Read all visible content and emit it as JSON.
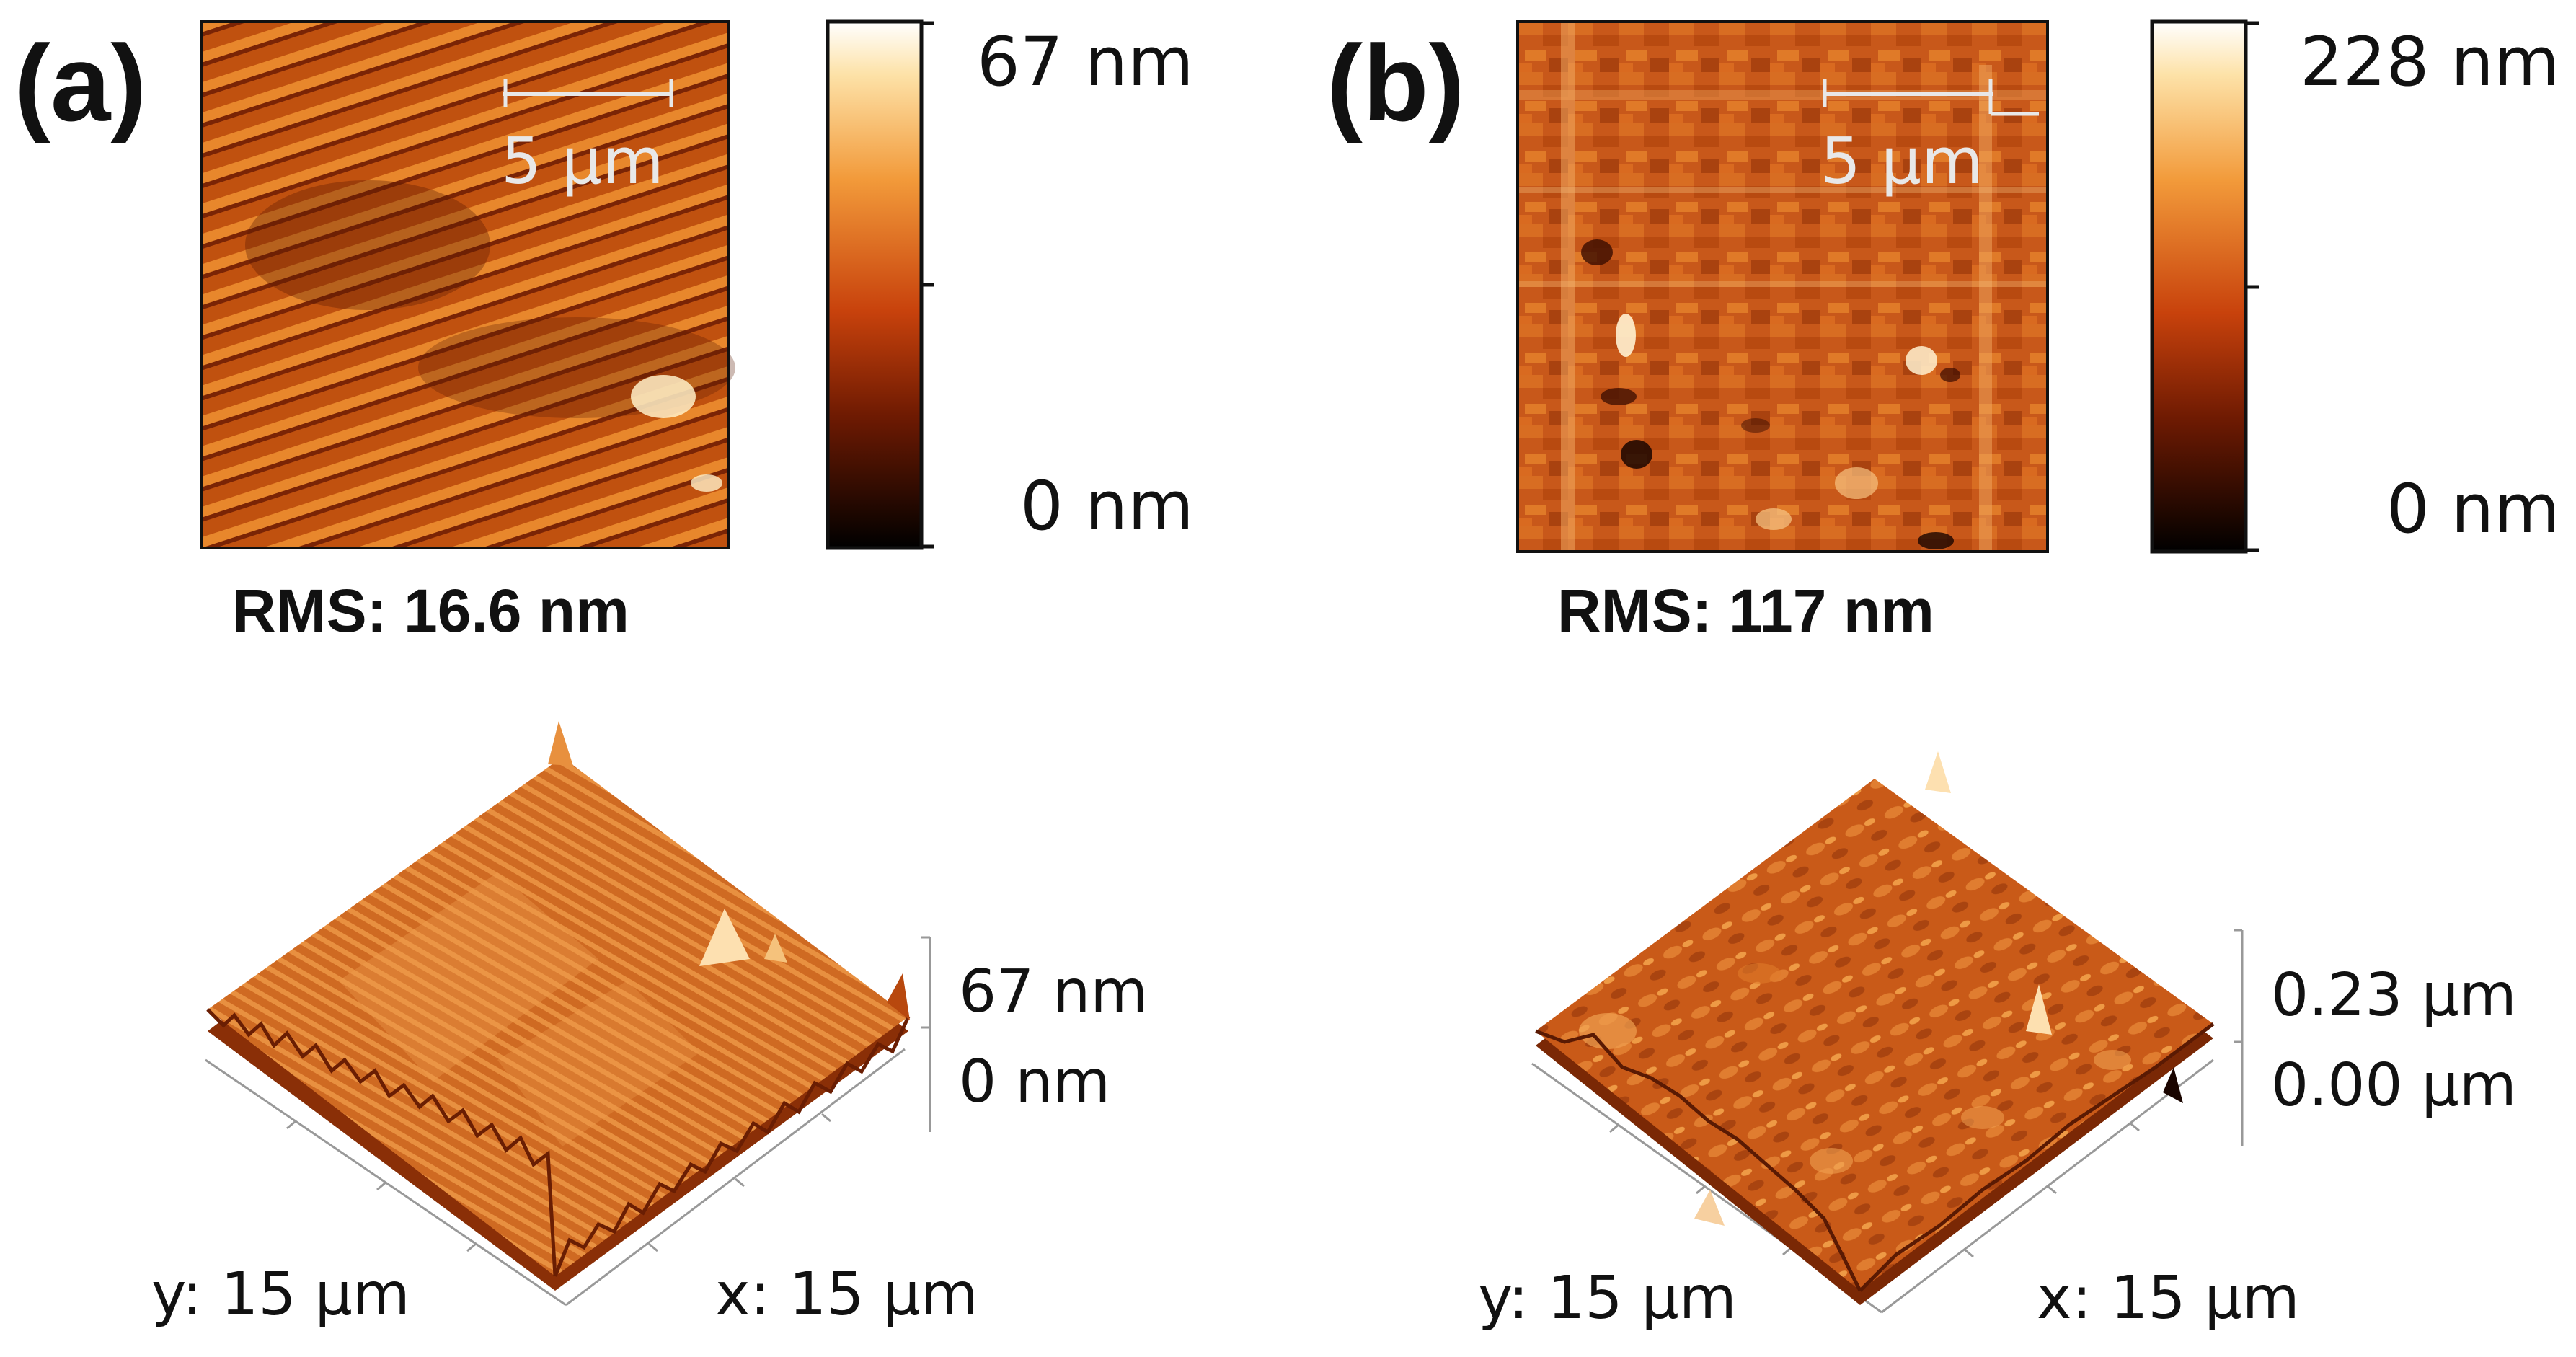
{
  "panels": [
    {
      "label": "(a)",
      "colorbar": {
        "max_label": "67 nm",
        "min_label": "0 nm"
      },
      "scale_bar": "5 µm",
      "rms": "RMS: 16.6 nm",
      "surface3d": {
        "z_top": "67 nm",
        "z_bottom": "0 nm",
        "y_axis": "y: 15 µm",
        "x_axis": "x: 15 µm"
      }
    },
    {
      "label": "(b)",
      "colorbar": {
        "max_label": "228 nm",
        "min_label": "0 nm"
      },
      "scale_bar": "5 µm",
      "rms": "RMS: 117 nm",
      "surface3d": {
        "z_top": "0.23 µm",
        "z_bottom": "0.00 µm",
        "y_axis": "y: 15 µm",
        "x_axis": "x: 15 µm"
      }
    }
  ],
  "colors": {
    "dark": "#1a0500",
    "mid": "#c8500f",
    "light": "#f7b55a",
    "white": "#fffaf0"
  }
}
